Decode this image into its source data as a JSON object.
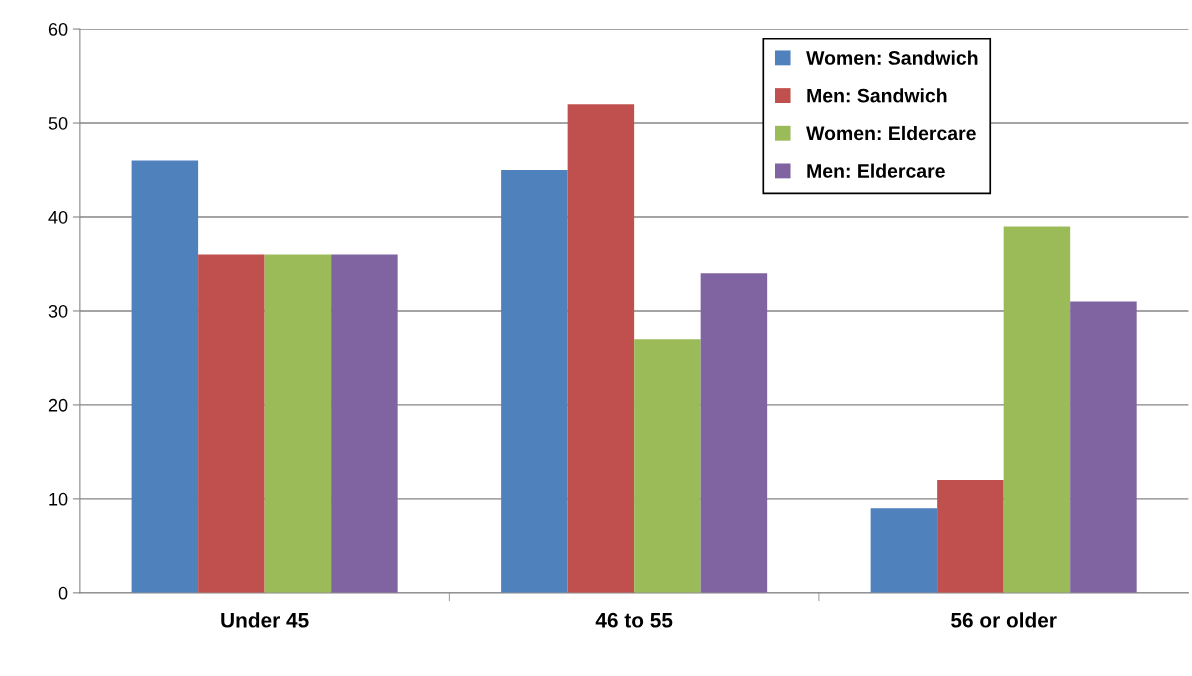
{
  "chart_data": {
    "type": "bar",
    "categories": [
      "Under 45",
      "46 to 55",
      "56 or older"
    ],
    "series": [
      {
        "name": "Women: Sandwich",
        "color": "#4f81bd",
        "values": [
          46,
          45,
          9
        ]
      },
      {
        "name": "Men: Sandwich",
        "color": "#c0504d",
        "values": [
          36,
          52,
          12
        ]
      },
      {
        "name": "Women: Eldercare",
        "color": "#9bbb59",
        "values": [
          36,
          27,
          39
        ]
      },
      {
        "name": "Men: Eldercare",
        "color": "#8064a2",
        "values": [
          36,
          34,
          31
        ]
      }
    ],
    "ylim": [
      0,
      60
    ],
    "yticks": [
      0,
      10,
      20,
      30,
      40,
      50,
      60
    ],
    "grid": "y",
    "legend": "top right"
  }
}
